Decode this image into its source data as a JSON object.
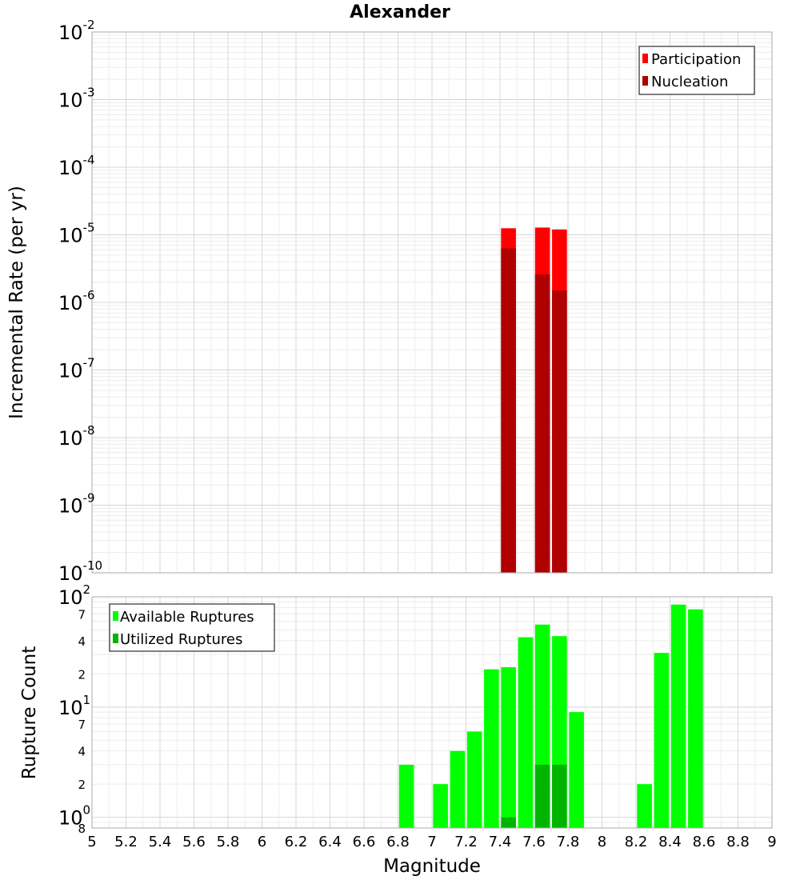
{
  "chart_data": [
    {
      "type": "bar",
      "title": "Alexander",
      "xlabel": "Magnitude",
      "ylabel": "Incremental Rate (per yr)",
      "yscale": "log",
      "xlim": [
        5,
        9
      ],
      "ylim": [
        1e-10,
        0.01
      ],
      "grid": true,
      "legend_position": "top-right",
      "x_ticks": [
        "5",
        "5.2",
        "5.4",
        "5.6",
        "5.8",
        "6",
        "6.2",
        "6.4",
        "6.6",
        "6.8",
        "7",
        "7.2",
        "7.4",
        "7.6",
        "7.8",
        "8",
        "8.2",
        "8.4",
        "8.6",
        "8.8",
        "9"
      ],
      "y_ticks": [
        {
          "base": "10",
          "exp": "-2"
        },
        {
          "base": "10",
          "exp": "-3"
        },
        {
          "base": "10",
          "exp": "-4"
        },
        {
          "base": "10",
          "exp": "-5"
        },
        {
          "base": "10",
          "exp": "-6"
        },
        {
          "base": "10",
          "exp": "-7"
        },
        {
          "base": "10",
          "exp": "-8"
        },
        {
          "base": "10",
          "exp": "-9"
        },
        {
          "base": "10",
          "exp": "-10"
        }
      ],
      "series": [
        {
          "name": "Participation",
          "color": "#ff0000",
          "points": [
            [
              7.45,
              1.25e-05
            ],
            [
              7.65,
              1.28e-05
            ],
            [
              7.75,
              1.2e-05
            ]
          ]
        },
        {
          "name": "Nucleation",
          "color": "#b00000",
          "points": [
            [
              7.45,
              6.3e-06
            ],
            [
              7.65,
              2.6e-06
            ],
            [
              7.75,
              1.5e-06
            ]
          ]
        }
      ]
    },
    {
      "type": "bar",
      "title": "",
      "xlabel": "Magnitude",
      "ylabel": "Rupture Count",
      "yscale": "log",
      "xlim": [
        5,
        9
      ],
      "ylim": [
        0.8,
        100
      ],
      "grid": true,
      "legend_position": "top-left",
      "x_ticks": [
        "5",
        "5.2",
        "5.4",
        "5.6",
        "5.8",
        "6",
        "6.2",
        "6.4",
        "6.6",
        "6.8",
        "7",
        "7.2",
        "7.4",
        "7.6",
        "7.8",
        "8",
        "8.2",
        "8.4",
        "8.6",
        "8.8",
        "9"
      ],
      "y_major_ticks": [
        {
          "base": "10",
          "exp": "2"
        },
        {
          "base": "10",
          "exp": "1"
        },
        {
          "base": "10",
          "exp": "0"
        }
      ],
      "y_minor_ticks": [
        "7",
        "4",
        "2",
        "7",
        "4",
        "2",
        "8"
      ],
      "series": [
        {
          "name": "Available Ruptures",
          "color": "#00ff00",
          "points": [
            [
              6.85,
              3
            ],
            [
              7.05,
              2
            ],
            [
              7.15,
              4
            ],
            [
              7.25,
              6
            ],
            [
              7.35,
              22
            ],
            [
              7.45,
              23
            ],
            [
              7.55,
              43
            ],
            [
              7.65,
              56
            ],
            [
              7.75,
              44
            ],
            [
              7.85,
              9
            ],
            [
              8.25,
              2
            ],
            [
              8.35,
              31
            ],
            [
              8.45,
              85
            ],
            [
              8.55,
              77
            ]
          ]
        },
        {
          "name": "Utilized Ruptures",
          "color": "#00b400",
          "points": [
            [
              7.45,
              1
            ],
            [
              7.65,
              3
            ],
            [
              7.75,
              3
            ]
          ]
        }
      ]
    }
  ]
}
